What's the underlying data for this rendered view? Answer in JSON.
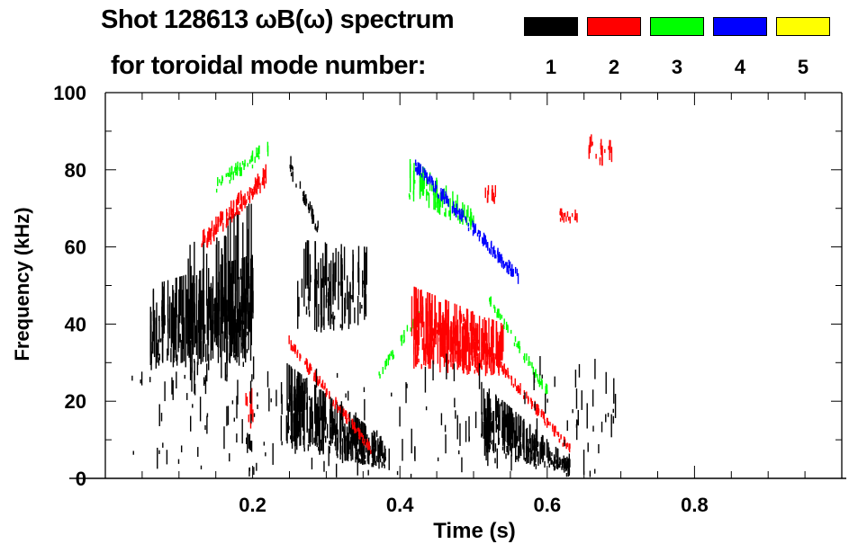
{
  "chart_data": {
    "type": "heatmap",
    "title": "Shot 128613 ωB(ω) spectrum",
    "legend_title": "for toroidal mode number:",
    "legend": [
      {
        "label": "1",
        "color": "#000000"
      },
      {
        "label": "2",
        "color": "#ff0000"
      },
      {
        "label": "3",
        "color": "#00ff00"
      },
      {
        "label": "4",
        "color": "#0000ff"
      },
      {
        "label": "5",
        "color": "#ffff00"
      }
    ],
    "xlabel": "Time (s)",
    "ylabel": "Frequency (kHz)",
    "xlim": [
      0,
      1.0
    ],
    "ylim": [
      0,
      100
    ],
    "xticks": [
      "0.2",
      "0.4",
      "0.6",
      "0.8"
    ],
    "xtick_values": [
      0.2,
      0.4,
      0.6,
      0.8
    ],
    "yticks": [
      "0",
      "20",
      "40",
      "60",
      "80",
      "100"
    ],
    "ytick_values": [
      0,
      20,
      40,
      60,
      80,
      100
    ],
    "grid": false,
    "features": [
      {
        "mode": 1,
        "t": [
          0.06,
          0.2
        ],
        "f_start": [
          28,
          50
        ],
        "f_end": [
          30,
          58
        ],
        "density": 2.2
      },
      {
        "mode": 1,
        "t": [
          0.11,
          0.2
        ],
        "f_start": [
          20,
          60
        ],
        "f_end": [
          30,
          72
        ],
        "density": 1.0
      },
      {
        "mode": 1,
        "t": [
          0.19,
          0.2
        ],
        "f_start": [
          5,
          12
        ],
        "f_end": [
          5,
          12
        ],
        "density": 1
      },
      {
        "mode": 2,
        "t": [
          0.13,
          0.22
        ],
        "f_start": [
          58,
          64
        ],
        "f_end": [
          76,
          82
        ],
        "density": 1.5
      },
      {
        "mode": 3,
        "t": [
          0.15,
          0.22
        ],
        "f_start": [
          74,
          78
        ],
        "f_end": [
          83,
          88
        ],
        "density": 0.8
      },
      {
        "mode": 2,
        "t": [
          0.19,
          0.2
        ],
        "f_start": [
          13,
          26
        ],
        "f_end": [
          12,
          24
        ],
        "density": 1
      },
      {
        "mode": 1,
        "t": [
          0.245,
          0.38
        ],
        "f_start": [
          8,
          30
        ],
        "f_end": [
          2,
          10
        ],
        "density": 2.5
      },
      {
        "mode": 2,
        "t": [
          0.245,
          0.36
        ],
        "f_start": [
          34,
          38
        ],
        "f_end": [
          6,
          9
        ],
        "density": 1.2
      },
      {
        "mode": 1,
        "t": [
          0.26,
          0.355
        ],
        "f_start": [
          35,
          62
        ],
        "f_end": [
          40,
          60
        ],
        "density": 1.2
      },
      {
        "mode": 1,
        "t": [
          0.25,
          0.29
        ],
        "f_start": [
          78,
          84
        ],
        "f_end": [
          62,
          66
        ],
        "density": 1.0
      },
      {
        "mode": 3,
        "t": [
          0.37,
          0.43
        ],
        "f_start": [
          25,
          28
        ],
        "f_end": [
          42,
          46
        ],
        "density": 0.5
      },
      {
        "mode": 2,
        "t": [
          0.415,
          0.54
        ],
        "f_start": [
          28,
          50
        ],
        "f_end": [
          26,
          40
        ],
        "density": 2.5
      },
      {
        "mode": 2,
        "t": [
          0.48,
          0.63
        ],
        "f_start": [
          40,
          44
        ],
        "f_end": [
          6,
          9
        ],
        "density": 1.2
      },
      {
        "mode": 3,
        "t": [
          0.41,
          0.5
        ],
        "f_start": [
          72,
          84
        ],
        "f_end": [
          64,
          70
        ],
        "density": 1.0
      },
      {
        "mode": 4,
        "t": [
          0.42,
          0.56
        ],
        "f_start": [
          79,
          83
        ],
        "f_end": [
          50,
          54
        ],
        "density": 1.2
      },
      {
        "mode": 3,
        "t": [
          0.52,
          0.6
        ],
        "f_start": [
          45,
          48
        ],
        "f_end": [
          20,
          24
        ],
        "density": 0.8
      },
      {
        "mode": 1,
        "t": [
          0.51,
          0.63
        ],
        "f_start": [
          6,
          25
        ],
        "f_end": [
          1,
          5
        ],
        "density": 2.2
      },
      {
        "mode": 2,
        "t": [
          0.515,
          0.53
        ],
        "f_start": [
          70,
          76
        ],
        "f_end": [
          70,
          76
        ],
        "density": 0.8
      },
      {
        "mode": 2,
        "t": [
          0.615,
          0.64
        ],
        "f_start": [
          66,
          70
        ],
        "f_end": [
          66,
          70
        ],
        "density": 0.8
      },
      {
        "mode": 2,
        "t": [
          0.655,
          0.69
        ],
        "f_start": [
          82,
          90
        ],
        "f_end": [
          80,
          88
        ],
        "density": 0.6
      },
      {
        "mode": 1,
        "t": [
          0.03,
          0.7
        ],
        "f_start": [
          0,
          45
        ],
        "f_end": [
          0,
          45
        ],
        "density": 0.35
      }
    ]
  }
}
